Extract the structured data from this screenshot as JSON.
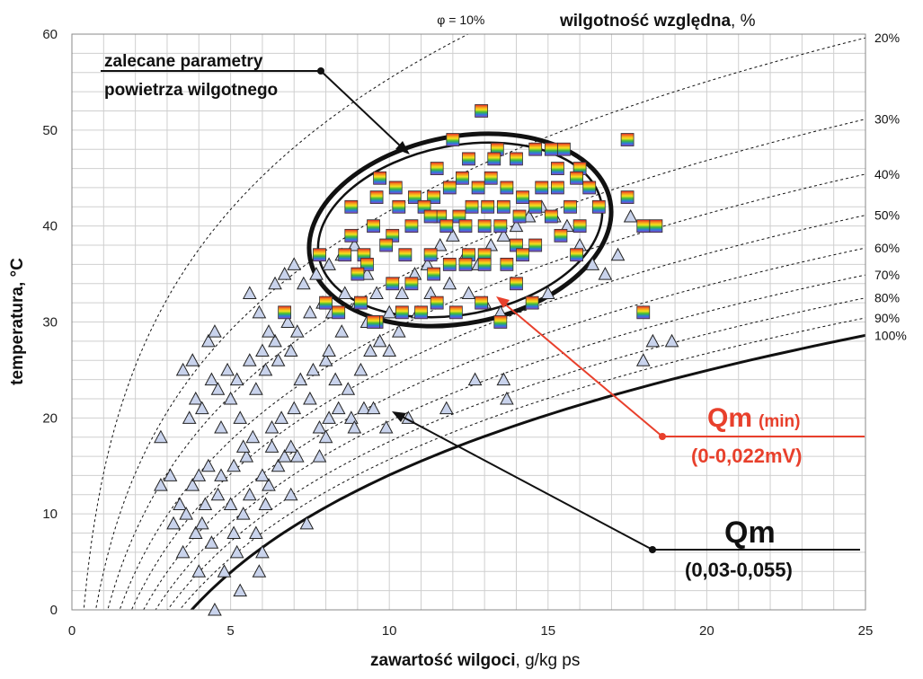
{
  "chart_data": {
    "type": "scatter",
    "xlabel_bold": "zawartość wilgoci",
    "xlabel_unit": ", g/kg ps",
    "ylabel": "temperatura, °C",
    "xlim": [
      0,
      25
    ],
    "ylim": [
      0,
      60
    ],
    "xticks": [
      "0",
      "5",
      "10",
      "15",
      "20",
      "25"
    ],
    "yticks": [
      "0",
      "10",
      "20",
      "30",
      "40",
      "50",
      "60"
    ],
    "grid": true,
    "rh_title_bold": "wilgotność względna",
    "rh_title_unit": ", %",
    "rh_curves": [
      {
        "phi": 0.1,
        "label": "φ = 10%"
      },
      {
        "phi": 0.2,
        "label": "20%"
      },
      {
        "phi": 0.3,
        "label": "30%"
      },
      {
        "phi": 0.4,
        "label": "40%"
      },
      {
        "phi": 0.5,
        "label": "50%"
      },
      {
        "phi": 0.6,
        "label": "60%"
      },
      {
        "phi": 0.7,
        "label": "70%"
      },
      {
        "phi": 0.8,
        "label": "80%"
      },
      {
        "phi": 0.9,
        "label": "90%"
      },
      {
        "phi": 1.0,
        "label": "100%"
      }
    ],
    "annotations": {
      "recommended_line1": "zalecane parametry",
      "recommended_line2": "powietrza wilgotnego",
      "qm_min_main": "Qm",
      "qm_min_sub": "(min)",
      "qm_min_range": "(0-0,022mV)",
      "qm_main": "Qm",
      "qm_range": "(0,03-0,055)"
    },
    "colors": {
      "triangle_fill": "#c9d3ec",
      "triangle_stroke": "#222222",
      "qm_min": "#e8402c"
    },
    "series": [
      {
        "marker": "triangle",
        "points": [
          [
            4.5,
            0
          ],
          [
            5.3,
            2
          ],
          [
            5.9,
            4
          ],
          [
            6.0,
            6
          ],
          [
            5.8,
            8
          ],
          [
            5.2,
            6
          ],
          [
            4.8,
            4
          ],
          [
            3.5,
            6
          ],
          [
            3.9,
            8
          ],
          [
            4.4,
            7
          ],
          [
            4.2,
            11
          ],
          [
            4.6,
            12
          ],
          [
            5.0,
            11
          ],
          [
            5.4,
            10
          ],
          [
            5.6,
            12
          ],
          [
            6.1,
            11
          ],
          [
            6.2,
            13
          ],
          [
            6.5,
            15
          ],
          [
            6.7,
            16
          ],
          [
            6.9,
            17
          ],
          [
            7.1,
            16
          ],
          [
            7.4,
            9
          ],
          [
            2.8,
            13
          ],
          [
            3.1,
            14
          ],
          [
            3.2,
            9
          ],
          [
            3.4,
            11
          ],
          [
            3.6,
            10
          ],
          [
            3.8,
            13
          ],
          [
            4.0,
            14
          ],
          [
            4.3,
            15
          ],
          [
            4.7,
            14
          ],
          [
            5.1,
            15
          ],
          [
            5.5,
            16
          ],
          [
            5.7,
            18
          ],
          [
            6.3,
            19
          ],
          [
            6.6,
            20
          ],
          [
            7.0,
            21
          ],
          [
            7.5,
            22
          ],
          [
            7.8,
            19
          ],
          [
            8.1,
            20
          ],
          [
            8.4,
            21
          ],
          [
            8.8,
            20
          ],
          [
            9.2,
            21
          ],
          [
            9.5,
            21
          ],
          [
            2.8,
            18
          ],
          [
            3.7,
            20
          ],
          [
            3.9,
            22
          ],
          [
            4.1,
            21
          ],
          [
            4.4,
            24
          ],
          [
            4.6,
            23
          ],
          [
            4.9,
            25
          ],
          [
            5.2,
            24
          ],
          [
            5.6,
            26
          ],
          [
            6.0,
            27
          ],
          [
            6.4,
            28
          ],
          [
            6.8,
            30
          ],
          [
            7.1,
            29
          ],
          [
            7.5,
            31
          ],
          [
            7.9,
            32
          ],
          [
            8.2,
            31
          ],
          [
            8.6,
            33
          ],
          [
            9.0,
            32
          ],
          [
            9.3,
            30
          ],
          [
            9.7,
            28
          ],
          [
            10.0,
            27
          ],
          [
            3.5,
            25
          ],
          [
            3.8,
            26
          ],
          [
            4.3,
            28
          ],
          [
            4.5,
            29
          ],
          [
            5.0,
            22
          ],
          [
            5.3,
            20
          ],
          [
            5.8,
            23
          ],
          [
            6.1,
            25
          ],
          [
            6.5,
            26
          ],
          [
            6.9,
            27
          ],
          [
            7.2,
            24
          ],
          [
            7.6,
            25
          ],
          [
            8.0,
            26
          ],
          [
            8.3,
            24
          ],
          [
            8.7,
            23
          ],
          [
            9.1,
            25
          ],
          [
            5.6,
            33
          ],
          [
            5.9,
            31
          ],
          [
            6.2,
            29
          ],
          [
            6.4,
            34
          ],
          [
            6.7,
            35
          ],
          [
            7.0,
            36
          ],
          [
            7.3,
            34
          ],
          [
            7.7,
            35
          ],
          [
            8.1,
            36
          ],
          [
            8.5,
            37
          ],
          [
            8.9,
            38
          ],
          [
            9.3,
            35
          ],
          [
            9.6,
            33
          ],
          [
            10.0,
            31
          ],
          [
            10.4,
            33
          ],
          [
            10.8,
            35
          ],
          [
            11.2,
            36
          ],
          [
            11.6,
            38
          ],
          [
            12.0,
            39
          ],
          [
            12.4,
            37
          ],
          [
            12.8,
            36
          ],
          [
            13.2,
            38
          ],
          [
            13.6,
            39
          ],
          [
            14.0,
            40
          ],
          [
            14.4,
            41
          ],
          [
            14.8,
            42
          ],
          [
            15.2,
            41
          ],
          [
            15.6,
            40
          ],
          [
            16.0,
            38
          ],
          [
            16.4,
            36
          ],
          [
            16.8,
            35
          ],
          [
            17.2,
            37
          ],
          [
            17.6,
            41
          ],
          [
            18.0,
            26
          ],
          [
            18.3,
            28
          ],
          [
            18.9,
            28
          ],
          [
            12.7,
            24
          ],
          [
            13.6,
            24
          ],
          [
            13.7,
            22
          ],
          [
            11.8,
            21
          ],
          [
            8.1,
            27
          ],
          [
            8.5,
            29
          ],
          [
            9.4,
            27
          ],
          [
            10.3,
            29
          ],
          [
            10.9,
            31
          ],
          [
            11.3,
            33
          ],
          [
            11.9,
            34
          ],
          [
            12.5,
            33
          ],
          [
            13.0,
            32
          ],
          [
            13.5,
            31
          ],
          [
            14.5,
            32
          ],
          [
            15.0,
            33
          ],
          [
            6.0,
            14
          ],
          [
            5.4,
            17
          ],
          [
            6.3,
            17
          ],
          [
            7.8,
            16
          ],
          [
            8.0,
            18
          ],
          [
            8.9,
            19
          ],
          [
            9.9,
            19
          ],
          [
            10.6,
            20
          ],
          [
            4.7,
            19
          ],
          [
            4.1,
            9
          ],
          [
            5.1,
            8
          ],
          [
            6.9,
            12
          ],
          [
            4.0,
            4
          ]
        ]
      },
      {
        "marker": "rainbow-square",
        "points": [
          [
            12.9,
            52
          ],
          [
            12.0,
            49
          ],
          [
            13.4,
            48
          ],
          [
            15.1,
            48
          ],
          [
            15.5,
            48
          ],
          [
            17.5,
            49
          ],
          [
            11.5,
            46
          ],
          [
            12.5,
            47
          ],
          [
            13.3,
            47
          ],
          [
            14.0,
            47
          ],
          [
            14.6,
            48
          ],
          [
            15.3,
            46
          ],
          [
            16.0,
            46
          ],
          [
            9.7,
            45
          ],
          [
            10.2,
            44
          ],
          [
            10.8,
            43
          ],
          [
            11.4,
            43
          ],
          [
            11.9,
            44
          ],
          [
            12.3,
            45
          ],
          [
            12.8,
            44
          ],
          [
            13.2,
            45
          ],
          [
            13.7,
            44
          ],
          [
            14.2,
            43
          ],
          [
            14.8,
            44
          ],
          [
            15.3,
            44
          ],
          [
            15.9,
            45
          ],
          [
            16.3,
            44
          ],
          [
            17.5,
            43
          ],
          [
            8.8,
            42
          ],
          [
            9.6,
            43
          ],
          [
            10.3,
            42
          ],
          [
            11.1,
            42
          ],
          [
            11.6,
            41
          ],
          [
            12.2,
            41
          ],
          [
            12.6,
            42
          ],
          [
            13.1,
            42
          ],
          [
            13.6,
            42
          ],
          [
            14.1,
            41
          ],
          [
            14.6,
            42
          ],
          [
            15.1,
            41
          ],
          [
            15.7,
            42
          ],
          [
            16.6,
            42
          ],
          [
            8.8,
            39
          ],
          [
            9.5,
            40
          ],
          [
            10.1,
            39
          ],
          [
            10.7,
            40
          ],
          [
            11.3,
            41
          ],
          [
            11.8,
            40
          ],
          [
            12.4,
            40
          ],
          [
            13.0,
            40
          ],
          [
            13.5,
            40
          ],
          [
            14.0,
            38
          ],
          [
            14.6,
            38
          ],
          [
            15.4,
            39
          ],
          [
            16.0,
            40
          ],
          [
            18.0,
            40
          ],
          [
            18.4,
            40
          ],
          [
            7.8,
            37
          ],
          [
            8.6,
            37
          ],
          [
            9.2,
            37
          ],
          [
            9.9,
            38
          ],
          [
            10.5,
            37
          ],
          [
            11.3,
            37
          ],
          [
            11.9,
            36
          ],
          [
            12.5,
            37
          ],
          [
            13.0,
            37
          ],
          [
            13.7,
            36
          ],
          [
            14.2,
            37
          ],
          [
            15.9,
            37
          ],
          [
            9.3,
            36
          ],
          [
            9.0,
            35
          ],
          [
            10.1,
            34
          ],
          [
            10.7,
            34
          ],
          [
            11.4,
            35
          ],
          [
            12.4,
            36
          ],
          [
            13.0,
            36
          ],
          [
            14.0,
            34
          ],
          [
            8.0,
            32
          ],
          [
            8.4,
            31
          ],
          [
            9.1,
            32
          ],
          [
            9.6,
            30
          ],
          [
            10.4,
            31
          ],
          [
            11.0,
            31
          ],
          [
            11.5,
            32
          ],
          [
            12.1,
            31
          ],
          [
            12.9,
            32
          ],
          [
            13.5,
            30
          ],
          [
            14.5,
            32
          ],
          [
            6.7,
            31
          ],
          [
            18.0,
            31
          ],
          [
            9.5,
            30
          ]
        ]
      }
    ]
  }
}
